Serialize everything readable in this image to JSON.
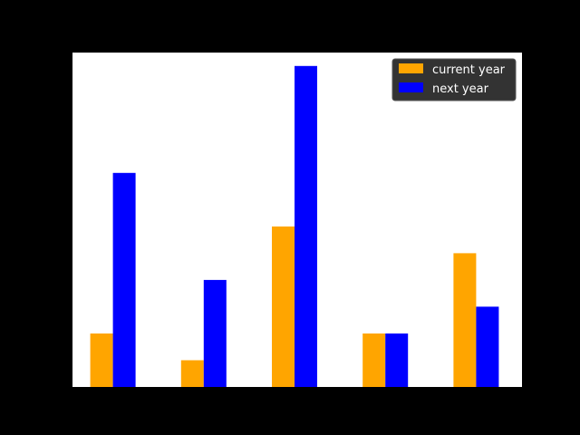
{
  "chart_data": {
    "type": "bar",
    "title": "",
    "xlabel": "",
    "ylabel": "",
    "categories": [
      "",
      "",
      "",
      "",
      ""
    ],
    "ylim": [
      0,
      12.5
    ],
    "grid": false,
    "legend_position": "top-right",
    "background": "#000000",
    "plot_background": "#ffffff",
    "series": [
      {
        "name": "current year",
        "color": "#ffa500",
        "values": [
          2,
          1,
          6,
          2,
          5
        ]
      },
      {
        "name": "next year",
        "color": "#0000ff",
        "values": [
          8,
          4,
          12,
          2,
          3
        ]
      }
    ]
  }
}
